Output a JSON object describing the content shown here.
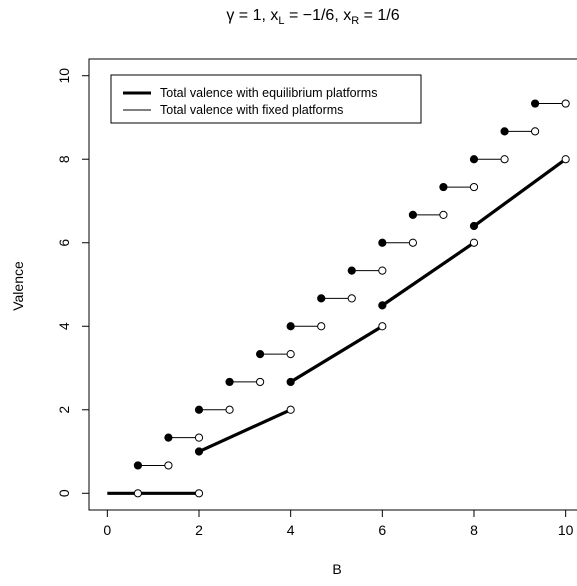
{
  "chart_data": {
    "type": "line",
    "title": "γ = 1, x_L = −1/6, x_R = 1/6",
    "title_parts": {
      "gamma": "γ = 1, x",
      "sub_l": "L",
      "xl_value": " = −1/6, x",
      "sub_r": "R",
      "xr_value": " = 1/6"
    },
    "xlabel": "B",
    "ylabel": "Valence",
    "xlim": [
      -0.4,
      10.4
    ],
    "ylim": [
      -0.4,
      10.4
    ],
    "x_ticks": [
      "0",
      "2",
      "4",
      "6",
      "8",
      "10"
    ],
    "y_ticks": [
      "0",
      "2",
      "4",
      "6",
      "8",
      "10"
    ],
    "grid": false,
    "legend_position": "top-left",
    "legend": [
      {
        "label": "Total valence with equilibrium platforms",
        "style": "thick"
      },
      {
        "label": "Total valence with fixed platforms",
        "style": "thin"
      }
    ],
    "series": [
      {
        "name": "Total valence with equilibrium platforms",
        "segments": [
          {
            "x": [
              0,
              2
            ],
            "y": [
              0,
              0
            ],
            "start": "none",
            "end": "open"
          },
          {
            "x": [
              2,
              4
            ],
            "y": [
              1,
              2
            ],
            "start": "filled",
            "end": "open"
          },
          {
            "x": [
              4,
              6
            ],
            "y": [
              2.667,
              4
            ],
            "start": "filled",
            "end": "open"
          },
          {
            "x": [
              6,
              8
            ],
            "y": [
              4.5,
              6
            ],
            "start": "filled",
            "end": "open"
          },
          {
            "x": [
              8,
              10
            ],
            "y": [
              6.4,
              8
            ],
            "start": "filled",
            "end": "open"
          }
        ]
      },
      {
        "name": "Total valence with fixed platforms",
        "segments": [
          {
            "x": [
              0.667,
              1.333
            ],
            "y": [
              0.667,
              0.667
            ],
            "start": "filled",
            "end": "open"
          },
          {
            "x": [
              1.333,
              2.0
            ],
            "y": [
              1.333,
              1.333
            ],
            "start": "filled",
            "end": "open"
          },
          {
            "x": [
              2.0,
              2.667
            ],
            "y": [
              2.0,
              2.0
            ],
            "start": "filled",
            "end": "open"
          },
          {
            "x": [
              2.667,
              3.333
            ],
            "y": [
              2.667,
              2.667
            ],
            "start": "filled",
            "end": "open"
          },
          {
            "x": [
              3.333,
              4.0
            ],
            "y": [
              3.333,
              3.333
            ],
            "start": "filled",
            "end": "open"
          },
          {
            "x": [
              4.0,
              4.667
            ],
            "y": [
              4.0,
              4.0
            ],
            "start": "filled",
            "end": "open"
          },
          {
            "x": [
              4.667,
              5.333
            ],
            "y": [
              4.667,
              4.667
            ],
            "start": "filled",
            "end": "open"
          },
          {
            "x": [
              5.333,
              6.0
            ],
            "y": [
              5.333,
              5.333
            ],
            "start": "filled",
            "end": "open"
          },
          {
            "x": [
              6.0,
              6.667
            ],
            "y": [
              6.0,
              6.0
            ],
            "start": "filled",
            "end": "open"
          },
          {
            "x": [
              6.667,
              7.333
            ],
            "y": [
              6.667,
              6.667
            ],
            "start": "filled",
            "end": "open"
          },
          {
            "x": [
              7.333,
              8.0
            ],
            "y": [
              7.333,
              7.333
            ],
            "start": "filled",
            "end": "open"
          },
          {
            "x": [
              8.0,
              8.667
            ],
            "y": [
              8.0,
              8.0
            ],
            "start": "filled",
            "end": "open"
          },
          {
            "x": [
              8.667,
              9.333
            ],
            "y": [
              8.667,
              8.667
            ],
            "start": "filled",
            "end": "open"
          },
          {
            "x": [
              9.333,
              10.0
            ],
            "y": [
              9.333,
              9.333
            ],
            "start": "filled",
            "end": "open"
          }
        ]
      }
    ],
    "extra_points": [
      {
        "x": 0.667,
        "y": 0,
        "style": "open"
      }
    ]
  }
}
